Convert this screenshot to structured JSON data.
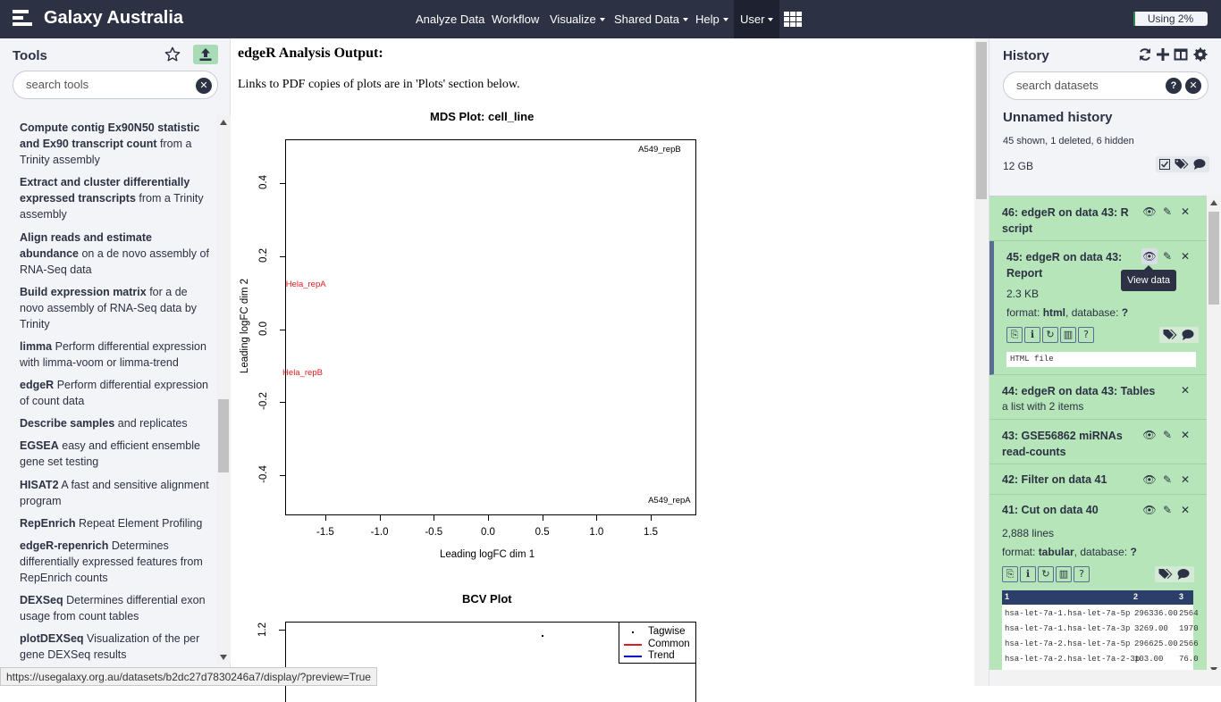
{
  "masthead": {
    "brand": "Galaxy Australia",
    "nav": [
      {
        "label": "Analyze Data",
        "dropdown": false
      },
      {
        "label": "Workflow",
        "dropdown": false
      },
      {
        "label": "Visualize",
        "dropdown": true
      },
      {
        "label": "Shared Data",
        "dropdown": true
      },
      {
        "label": "Help",
        "dropdown": true
      },
      {
        "label": "User",
        "dropdown": true
      }
    ],
    "apps_icon": "grid-icon",
    "quota": {
      "text": "Using 2%",
      "percent": 2
    }
  },
  "tools": {
    "title": "Tools",
    "search_placeholder": "search tools",
    "items": [
      {
        "name": "Compute contig Ex90N50 statistic and Ex90 transcript count",
        "desc": "from a Trinity assembly"
      },
      {
        "name": "Extract and cluster differentially expressed transcripts",
        "desc": "from a Trinity assembly"
      },
      {
        "name": "Align reads and estimate abundance",
        "desc": "on a de novo assembly of RNA-Seq data"
      },
      {
        "name": "Build expression matrix",
        "desc": "for a de novo assembly of RNA-Seq data by Trinity"
      },
      {
        "name": "limma",
        "desc": "Perform differential expression with limma-voom or limma-trend"
      },
      {
        "name": "edgeR",
        "desc": "Perform differential expression of count data"
      },
      {
        "name": "Describe samples",
        "desc": "and replicates"
      },
      {
        "name": "EGSEA",
        "desc": "easy and efficient ensemble gene set testing"
      },
      {
        "name": "HISAT2",
        "desc": "A fast and sensitive alignment program"
      },
      {
        "name": "RepEnrich",
        "desc": "Repeat Element Profiling"
      },
      {
        "name": "edgeR-repenrich",
        "desc": "Determines differentially expressed features from RepEnrich counts"
      },
      {
        "name": "DEXSeq",
        "desc": "Determines differential exon usage from count tables"
      },
      {
        "name": "plotDEXSeq",
        "desc": "Visualization of the per gene DEXSeq results"
      }
    ]
  },
  "report": {
    "title": "edgeR Analysis Output:",
    "intro": "Links to PDF copies of plots are in 'Plots' section below."
  },
  "chart_data": [
    {
      "type": "scatter",
      "title": "MDS Plot: cell_line",
      "xlabel": "Leading logFC dim 1",
      "ylabel": "Leading logFC dim 2",
      "xlim": [
        -1.87,
        1.92
      ],
      "ylim": [
        -0.51,
        0.52
      ],
      "xticks": [
        "-1.5",
        "-1.0",
        "-0.5",
        "0.0",
        "0.5",
        "1.0",
        "1.5"
      ],
      "yticks": [
        "-0.4",
        "-0.2",
        "0.0",
        "0.2",
        "0.4"
      ],
      "points": [
        {
          "label": "A549_repB",
          "x": 1.6,
          "y": 0.49,
          "color": "#000000"
        },
        {
          "label": "Hela_repA",
          "x": -1.65,
          "y": 0.12,
          "color": "#e41a1c"
        },
        {
          "label": "Hela_repB",
          "x": -1.68,
          "y": -0.12,
          "color": "#e41a1c"
        },
        {
          "label": "A549_repA",
          "x": 1.69,
          "y": -0.47,
          "color": "#000000"
        }
      ]
    },
    {
      "type": "line",
      "title": "BCV Plot",
      "yticks": [
        "1.2"
      ],
      "legend": [
        {
          "name": "Tagwise",
          "color": "#000000",
          "style": "point"
        },
        {
          "name": "Common",
          "color": "#e41a1c",
          "style": "line"
        },
        {
          "name": "Trend",
          "color": "#0000cc",
          "style": "line"
        }
      ],
      "legend_position": "top-right"
    }
  ],
  "history": {
    "title": "History",
    "search_placeholder": "search datasets",
    "name": "Unnamed history",
    "stats": "45 shown, 1 deleted, 6 hidden",
    "size": "12 GB",
    "datasets": [
      {
        "title": "46: edgeR on data 43: R script"
      },
      {
        "title": "45: edgeR on data 43: Report",
        "size": "2.3 KB",
        "format_label": "format:",
        "format": "html",
        "db_label": ", database:",
        "db": "?",
        "peek": "HTML file"
      },
      {
        "title": "44: edgeR on data 43: Tables",
        "sub": "a list with 2 items"
      },
      {
        "title": "43: GSE56862 miRNAs read-counts"
      },
      {
        "title": "42: Filter on data 41"
      },
      {
        "title": "41: Cut on data 40",
        "lines": "2,888 lines",
        "format_label": "format:",
        "format": "tabular",
        "db_label": ", database:",
        "db": "?",
        "peek_header": [
          "1",
          "2",
          "3"
        ],
        "peek_rows": [
          [
            "hsa-let-7a-1.hsa-let-7a-5p",
            "296336.00",
            "2564"
          ],
          [
            "hsa-let-7a-1.hsa-let-7a-3p",
            "3269.00",
            "1970"
          ],
          [
            "hsa-let-7a-2.hsa-let-7a-5p",
            "296625.00",
            "2566"
          ],
          [
            "hsa-let-7a-2.hsa-let-7a-2-3p",
            "103.00",
            "76.0"
          ]
        ]
      }
    ],
    "tooltip": "View data"
  },
  "status_url": "https://usegalaxy.org.au/datasets/b2dc27d7830246a7/display/?preview=True"
}
